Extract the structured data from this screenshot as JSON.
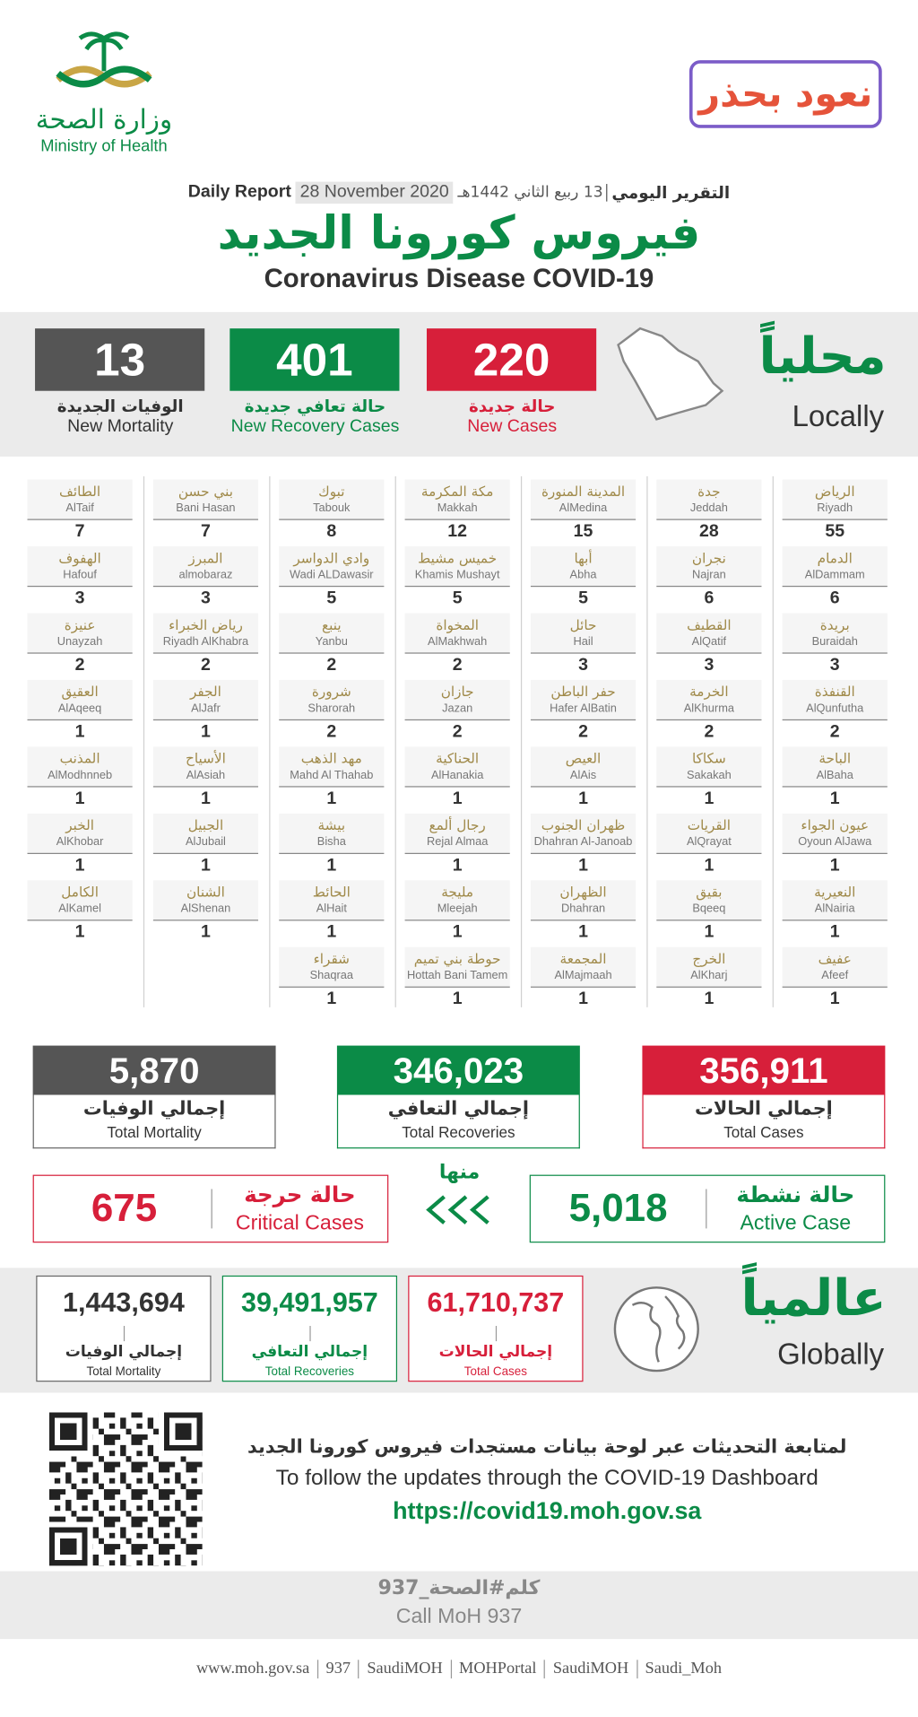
{
  "header": {
    "ministry_ar": "وزارة الصحة",
    "ministry_en": "Ministry of Health",
    "campaign": "نعود بحذر",
    "report_en": "Daily Report",
    "date_gregorian": "28 November 2020",
    "date_hijri": "13 ربيع الثاني 1442هـ",
    "report_ar": "التقرير اليومي",
    "title_ar": "فيروس كورونا الجديد",
    "title_en": "Coronavirus Disease COVID-19"
  },
  "local": {
    "title_ar": "محلياً",
    "title_en": "Locally",
    "stats": [
      {
        "value": "220",
        "label_ar": "حالة جديدة",
        "label_en": "New Cases"
      },
      {
        "value": "401",
        "label_ar": "حالة تعافي جديدة",
        "label_en": "New Recovery Cases"
      },
      {
        "value": "13",
        "label_ar": "الوفيات الجديدة",
        "label_en": "New Mortality"
      }
    ]
  },
  "cities": [
    [
      {
        "ar": "الرياض",
        "en": "Riyadh",
        "count": "55"
      },
      {
        "ar": "الدمام",
        "en": "AlDammam",
        "count": "6"
      },
      {
        "ar": "بريدة",
        "en": "Buraidah",
        "count": "3"
      },
      {
        "ar": "القنفذة",
        "en": "AlQunfutha",
        "count": "2"
      },
      {
        "ar": "الباحة",
        "en": "AlBaha",
        "count": "1"
      },
      {
        "ar": "عيون الجواء",
        "en": "Oyoun AlJawa",
        "count": "1"
      },
      {
        "ar": "النعيرية",
        "en": "AlNairia",
        "count": "1"
      },
      {
        "ar": "عفيف",
        "en": "Afeef",
        "count": "1"
      }
    ],
    [
      {
        "ar": "جدة",
        "en": "Jeddah",
        "count": "28"
      },
      {
        "ar": "نجران",
        "en": "Najran",
        "count": "6"
      },
      {
        "ar": "القطيف",
        "en": "AlQatif",
        "count": "3"
      },
      {
        "ar": "الخرمة",
        "en": "AlKhurma",
        "count": "2"
      },
      {
        "ar": "سكاكا",
        "en": "Sakakah",
        "count": "1"
      },
      {
        "ar": "القريات",
        "en": "AlQrayat",
        "count": "1"
      },
      {
        "ar": "بقيق",
        "en": "Bqeeq",
        "count": "1"
      },
      {
        "ar": "الخرج",
        "en": "AlKharj",
        "count": "1"
      }
    ],
    [
      {
        "ar": "المدينة المنورة",
        "en": "AlMedina",
        "count": "15"
      },
      {
        "ar": "أبها",
        "en": "Abha",
        "count": "5"
      },
      {
        "ar": "حائل",
        "en": "Hail",
        "count": "3"
      },
      {
        "ar": "حفر الباطن",
        "en": "Hafer AlBatin",
        "count": "2"
      },
      {
        "ar": "العيص",
        "en": "AlAis",
        "count": "1"
      },
      {
        "ar": "ظهران الجنوب",
        "en": "Dhahran Al-Janoab",
        "count": "1"
      },
      {
        "ar": "الظهران",
        "en": "Dhahran",
        "count": "1"
      },
      {
        "ar": "المجمعة",
        "en": "AlMajmaah",
        "count": "1"
      }
    ],
    [
      {
        "ar": "مكة المكرمة",
        "en": "Makkah",
        "count": "12"
      },
      {
        "ar": "خميس مشيط",
        "en": "Khamis Mushayt",
        "count": "5"
      },
      {
        "ar": "المخواة",
        "en": "AlMakhwah",
        "count": "2"
      },
      {
        "ar": "جازان",
        "en": "Jazan",
        "count": "2"
      },
      {
        "ar": "الحناكية",
        "en": "AlHanakia",
        "count": "1"
      },
      {
        "ar": "رجال ألمع",
        "en": "Rejal Almaa",
        "count": "1"
      },
      {
        "ar": "مليجة",
        "en": "Mleejah",
        "count": "1"
      },
      {
        "ar": "حوطة بني تميم",
        "en": "Hottah Bani Tamem",
        "count": "1"
      }
    ],
    [
      {
        "ar": "تبوك",
        "en": "Tabouk",
        "count": "8"
      },
      {
        "ar": "وادي الدواسر",
        "en": "Wadi ALDawasir",
        "count": "5"
      },
      {
        "ar": "ينبع",
        "en": "Yanbu",
        "count": "2"
      },
      {
        "ar": "شرورة",
        "en": "Sharorah",
        "count": "2"
      },
      {
        "ar": "مهد الذهب",
        "en": "Mahd Al Thahab",
        "count": "1"
      },
      {
        "ar": "بيشة",
        "en": "Bisha",
        "count": "1"
      },
      {
        "ar": "الحائط",
        "en": "AlHait",
        "count": "1"
      },
      {
        "ar": "شقراء",
        "en": "Shaqraa",
        "count": "1"
      }
    ],
    [
      {
        "ar": "بني حسن",
        "en": "Bani Hasan",
        "count": "7"
      },
      {
        "ar": "المبرز",
        "en": "almobaraz",
        "count": "3"
      },
      {
        "ar": "رياض الخبراء",
        "en": "Riyadh AlKhabra",
        "count": "2"
      },
      {
        "ar": "الجفر",
        "en": "AlJafr",
        "count": "1"
      },
      {
        "ar": "الأسياح",
        "en": "AlAsiah",
        "count": "1"
      },
      {
        "ar": "الجبيل",
        "en": "AlJubail",
        "count": "1"
      },
      {
        "ar": "الشنان",
        "en": "AlShenan",
        "count": "1"
      }
    ],
    [
      {
        "ar": "الطائف",
        "en": "AlTaif",
        "count": "7"
      },
      {
        "ar": "الهفوف",
        "en": "Hafouf",
        "count": "3"
      },
      {
        "ar": "عنيزة",
        "en": "Unayzah",
        "count": "2"
      },
      {
        "ar": "العقيق",
        "en": "AlAqeeq",
        "count": "1"
      },
      {
        "ar": "المذنب",
        "en": "AlModhnneb",
        "count": "1"
      },
      {
        "ar": "الخبر",
        "en": "AlKhobar",
        "count": "1"
      },
      {
        "ar": "الكامل",
        "en": "AlKamel",
        "count": "1"
      }
    ]
  ],
  "totals": [
    {
      "value": "356,911",
      "label_ar": "إجمالي الحالات",
      "label_en": "Total Cases"
    },
    {
      "value": "346,023",
      "label_ar": "إجمالي التعافي",
      "label_en": "Total Recoveries"
    },
    {
      "value": "5,870",
      "label_ar": "إجمالي الوفيات",
      "label_en": "Total Mortality"
    }
  ],
  "active": {
    "value": "5,018",
    "label_ar": "حالة نشطة",
    "label_en": "Active Case"
  },
  "of_which": "منها",
  "critical": {
    "value": "675",
    "label_ar": "حالة حرجة",
    "label_en": "Critical Cases"
  },
  "global": {
    "title_ar": "عالمياً",
    "title_en": "Globally",
    "stats": [
      {
        "value": "61,710,737",
        "label_ar": "إجمالي الحالات",
        "label_en": "Total Cases"
      },
      {
        "value": "39,491,957",
        "label_ar": "إجمالي التعافي",
        "label_en": "Total Recoveries"
      },
      {
        "value": "1,443,694",
        "label_ar": "إجمالي الوفيات",
        "label_en": "Total Mortality"
      }
    ]
  },
  "dashboard": {
    "text_ar": "لمتابعة التحديثات عبر لوحة بيانات مستجدات فيروس كورونا الجديد",
    "text_en": "To follow the updates through the COVID-19 Dashboard",
    "url": "https://covid19.moh.gov.sa"
  },
  "call": {
    "ar": "كلم#الصحة_937",
    "en": "Call MoH 937"
  },
  "footer": [
    "www.moh.gov.sa",
    "937",
    "SaudiMOH",
    "MOHPortal",
    "SaudiMOH",
    "Saudi_Moh"
  ]
}
